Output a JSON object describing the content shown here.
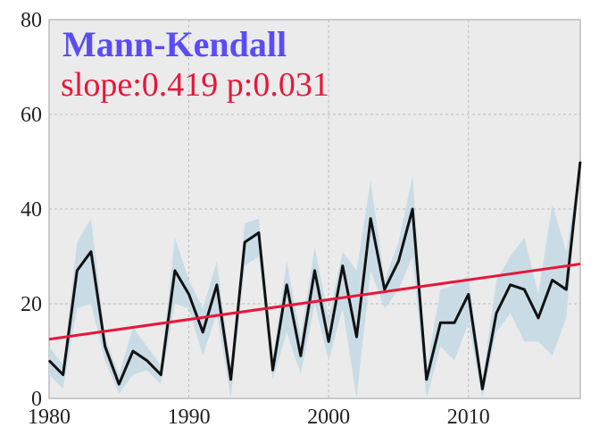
{
  "chart_data": {
    "type": "line",
    "title": "Mann-Kendall",
    "subtitle": "slope:0.419 p:0.031",
    "xlabel": "",
    "ylabel": "",
    "xlim": [
      1980,
      2018
    ],
    "ylim": [
      0,
      80
    ],
    "xticks": [
      "1980",
      "1990",
      "2000",
      "2010"
    ],
    "yticks": [
      "0",
      "20",
      "40",
      "60",
      "80"
    ],
    "grid": true,
    "x": [
      1980,
      1981,
      1982,
      1983,
      1984,
      1985,
      1986,
      1987,
      1988,
      1989,
      1990,
      1991,
      1992,
      1993,
      1994,
      1995,
      1996,
      1997,
      1998,
      1999,
      2000,
      2001,
      2002,
      2003,
      2004,
      2005,
      2006,
      2007,
      2008,
      2009,
      2010,
      2011,
      2012,
      2013,
      2014,
      2015,
      2016,
      2017,
      2018
    ],
    "series": [
      {
        "values": [
          8,
          5,
          27,
          31,
          11,
          3,
          10,
          8,
          5,
          27,
          22,
          14,
          24,
          4,
          33,
          35,
          6,
          24,
          9,
          27,
          12,
          28,
          13,
          38,
          23,
          29,
          40,
          4,
          16,
          16,
          22,
          2,
          18,
          24,
          23,
          17,
          25,
          23,
          50
        ]
      }
    ],
    "band": {
      "upper": [
        11,
        7,
        33,
        38,
        13,
        5,
        15,
        11,
        7,
        34,
        25,
        19,
        29,
        6,
        37,
        38,
        8,
        29,
        13,
        32,
        17,
        31,
        27,
        46,
        25,
        33,
        47,
        6,
        23,
        24,
        26,
        4,
        25,
        30,
        34,
        22,
        41,
        31,
        50
      ],
      "lower": [
        5,
        2,
        19,
        20,
        8,
        1,
        5,
        6,
        3,
        20,
        19,
        9,
        18,
        0,
        28,
        30,
        4,
        14,
        5,
        20,
        8,
        19,
        0,
        27,
        19,
        23,
        30,
        0,
        11,
        8,
        16,
        0,
        14,
        18,
        12,
        12,
        9,
        17,
        50
      ]
    },
    "trend": {
      "x": [
        1980,
        2018
      ],
      "y": [
        12.5,
        28.4
      ]
    },
    "colors": {
      "line": "#111111",
      "band": "#c5dae6",
      "trend": "#e8163a",
      "title": "#5a4cf5",
      "subtitle": "#e8163a",
      "background": "#ebebeb"
    }
  }
}
